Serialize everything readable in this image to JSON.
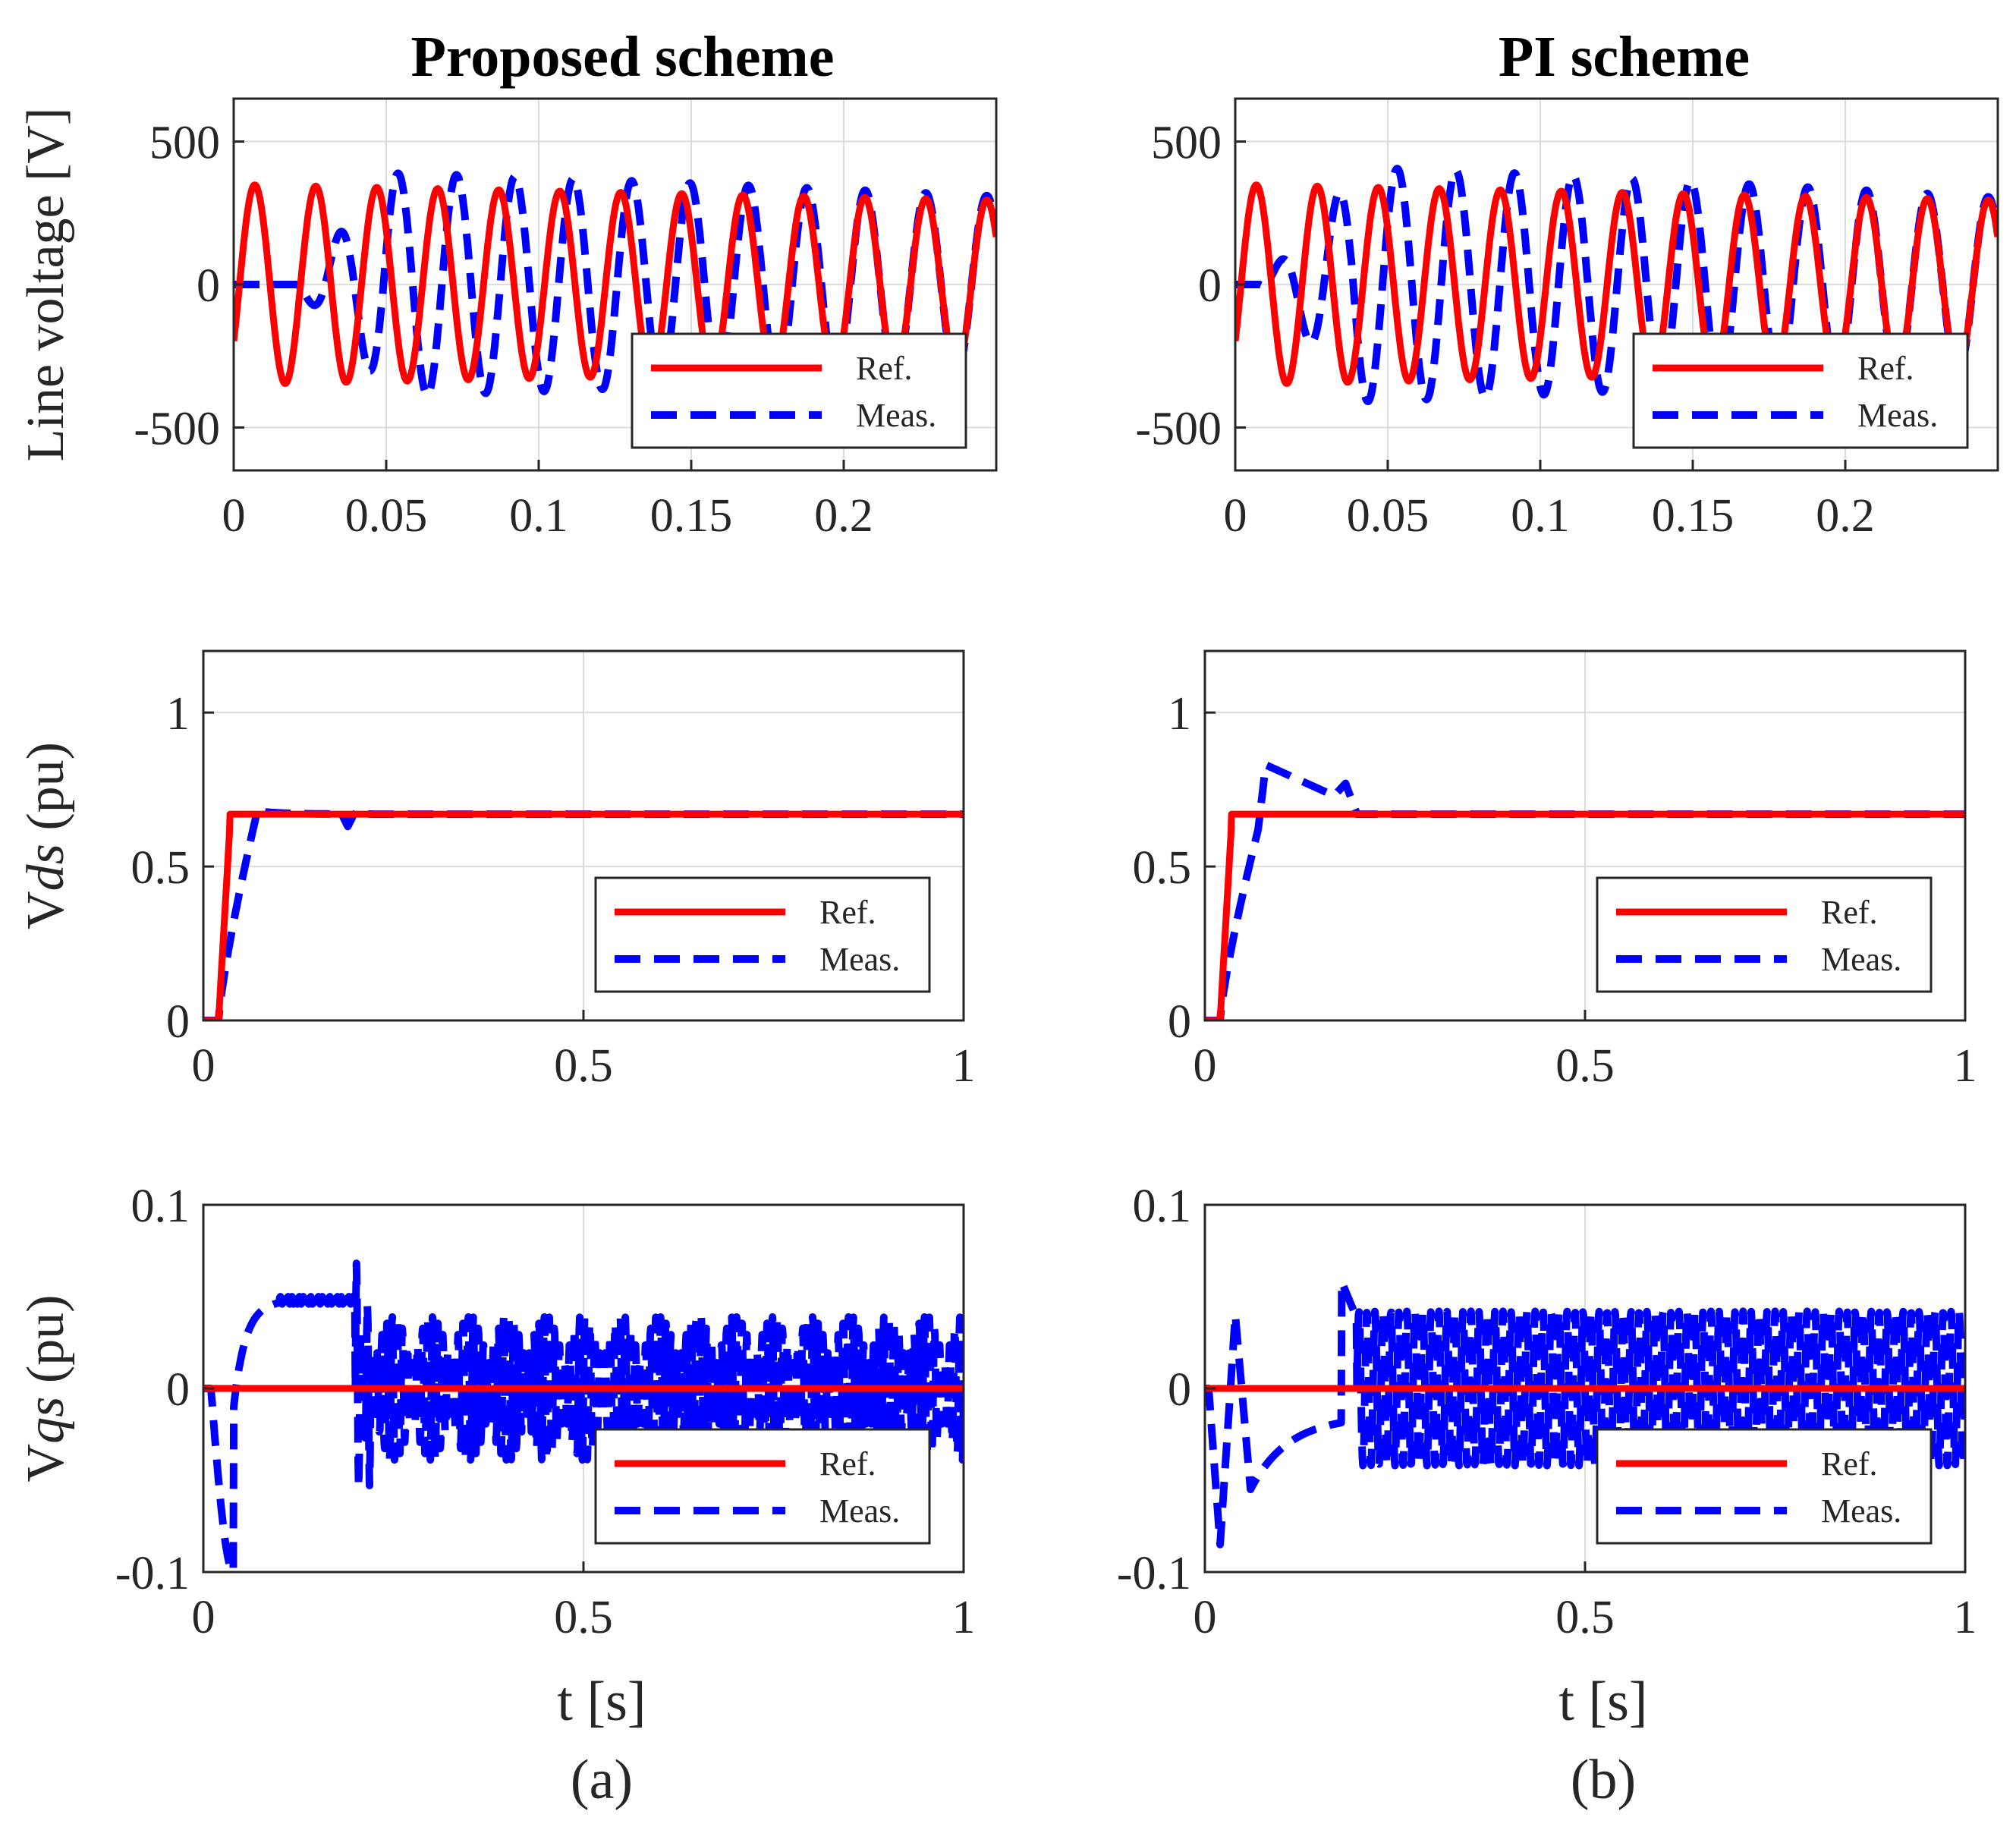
{
  "chart_data": {
    "type": "line",
    "captions": [
      "(a)",
      "(b)"
    ],
    "columns": [
      {
        "title": "Proposed scheme",
        "caption": "(a)"
      },
      {
        "title": "PI scheme",
        "caption": "(b)"
      }
    ],
    "rows": [
      {
        "name": "line-voltage",
        "ylabel": "Line voltage [V]",
        "ylabel_parts": [
          {
            "text": "Line voltage [V]",
            "italic": false
          }
        ],
        "xlabel": "",
        "xlim": [
          0,
          0.25
        ],
        "ylim": [
          -650,
          650
        ],
        "xticks": [
          0,
          0.05,
          0.1,
          0.15,
          0.2
        ],
        "xtick_labels": [
          "0",
          "0.05",
          "0.1",
          "0.15",
          "0.2"
        ],
        "yticks": [
          500,
          0,
          -500
        ],
        "ytick_labels": [
          "500",
          "0",
          "-500"
        ],
        "legend_location": "bottom-right"
      },
      {
        "name": "vds",
        "ylabel": "Vds (pu)",
        "ylabel_parts": [
          {
            "text": "V",
            "italic": false
          },
          {
            "text": "ds",
            "italic": true
          },
          {
            "text": " (pu)",
            "italic": false
          }
        ],
        "xlabel": "",
        "xlim": [
          0,
          1
        ],
        "ylim": [
          0,
          1.2
        ],
        "xticks": [
          0,
          0.5,
          1
        ],
        "xtick_labels": [
          "0",
          "0.5",
          "1"
        ],
        "yticks": [
          1,
          0.5,
          0
        ],
        "ytick_labels": [
          "1",
          "0.5",
          "0"
        ],
        "legend_location": "bottom-right"
      },
      {
        "name": "vqs",
        "ylabel": "Vqs (pu)",
        "ylabel_parts": [
          {
            "text": "V",
            "italic": false
          },
          {
            "text": "qs",
            "italic": true
          },
          {
            "text": " (pu)",
            "italic": false
          }
        ],
        "xlabel": "t  [s]",
        "xlim": [
          0,
          1
        ],
        "ylim": [
          -0.1,
          0.1
        ],
        "xticks": [
          0,
          0.5,
          1
        ],
        "xtick_labels": [
          "0",
          "0.5",
          "1"
        ],
        "yticks": [
          0.1,
          0,
          -0.1
        ],
        "ytick_labels": [
          "0.1",
          "0",
          "-0.1"
        ],
        "legend_location": "bottom-right"
      }
    ],
    "legend": [
      "Ref.",
      "Meas."
    ],
    "series_colors": {
      "Ref.": "#ff0000",
      "Meas.": "#0000ff"
    },
    "series_styles": {
      "Ref.": "solid",
      "Meas.": "dashed"
    },
    "panels": [
      {
        "id": "a1",
        "column": 0,
        "row": 0,
        "ref": {
          "kind": "sine",
          "freq_hz": 50,
          "amp_start": 350,
          "amp_end": 295,
          "delay": 0.0
        },
        "meas": {
          "kind": "sine",
          "freq_hz": 50,
          "amp_peak": 390,
          "amp_end": 300,
          "phase_lag_start": 0.0085,
          "settle_time": 0.19,
          "start": 0.02
        }
      },
      {
        "id": "b1",
        "column": 1,
        "row": 0,
        "ref": {
          "kind": "sine",
          "freq_hz": 50,
          "amp_start": 350,
          "amp_end": 295,
          "delay": 0.0
        },
        "meas": {
          "kind": "sine",
          "freq_hz": 50,
          "amp_peak": 410,
          "amp_end": 300,
          "phase_lag_start": 0.008,
          "settle_time": 0.2,
          "start": 0.008
        }
      },
      {
        "id": "a2",
        "column": 0,
        "row": 1,
        "ref": {
          "kind": "step",
          "t0": 0.02,
          "t1": 0.035,
          "value": 0.67
        },
        "meas": {
          "kind": "step-dip",
          "t0": 0.02,
          "t1": 0.07,
          "value": 0.67,
          "dip_time": 0.19,
          "dip_value": 0.63
        }
      },
      {
        "id": "b2",
        "column": 1,
        "row": 1,
        "ref": {
          "kind": "step",
          "t0": 0.02,
          "t1": 0.035,
          "value": 0.67
        },
        "meas": {
          "kind": "step-overshoot",
          "t0": 0.02,
          "t1": 0.07,
          "value": 0.67,
          "peak_time": 0.07,
          "peak_value": 0.83,
          "settle_time": 0.2,
          "spike_value": 0.77
        }
      },
      {
        "id": "a3",
        "column": 0,
        "row": 2,
        "ref": {
          "kind": "constant",
          "value": 0
        },
        "meas": {
          "kind": "beating",
          "initial_min": -0.1,
          "plateau": 0.048,
          "switch_time": 0.2,
          "band_upper": 0.04,
          "band_lower": -0.04,
          "beat_period": 0.1
        }
      },
      {
        "id": "b3",
        "column": 1,
        "row": 2,
        "ref": {
          "kind": "constant",
          "value": 0
        },
        "meas": {
          "kind": "oscillation",
          "initial_min": -0.085,
          "initial_max": 0.04,
          "pre_switch_value": -0.015,
          "switch_time": 0.18,
          "band_upper": 0.042,
          "band_lower": -0.042
        }
      }
    ]
  }
}
